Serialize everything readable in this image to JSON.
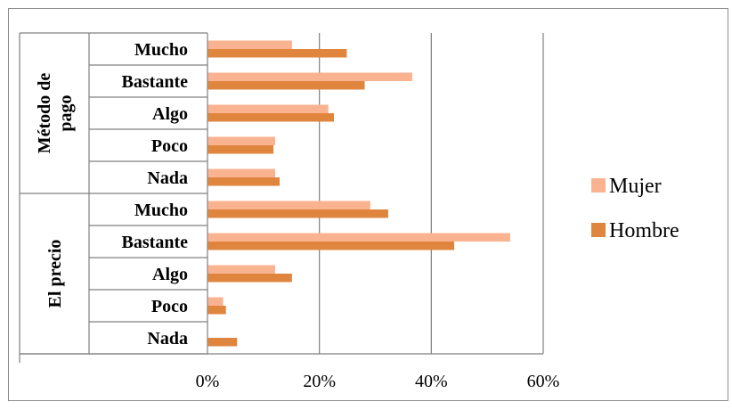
{
  "chart_data": {
    "type": "bar",
    "orientation": "horizontal",
    "groups": [
      {
        "name": "Método de pago",
        "label_lines": [
          "Método de",
          "pago"
        ],
        "categories": [
          "Mucho",
          "Bastante",
          "Algo",
          "Poco",
          "Nada"
        ]
      },
      {
        "name": "El precio",
        "label_lines": [
          "El precio"
        ],
        "categories": [
          "Mucho",
          "Bastante",
          "Algo",
          "Poco",
          "Nada"
        ]
      }
    ],
    "series": [
      {
        "name": "Mujer",
        "color": "#F9B390",
        "values": [
          0.15,
          0.365,
          0.215,
          0.12,
          0.12,
          0.29,
          0.54,
          0.12,
          0.027,
          0.0
        ]
      },
      {
        "name": "Hombre",
        "color": "#E0853E",
        "values": [
          0.248,
          0.28,
          0.225,
          0.117,
          0.128,
          0.322,
          0.44,
          0.15,
          0.032,
          0.052
        ]
      }
    ],
    "xlim": [
      0,
      0.6
    ],
    "xticks": [
      "0%",
      "20%",
      "40%",
      "60%"
    ],
    "grid": "vertical",
    "legend": "right"
  }
}
